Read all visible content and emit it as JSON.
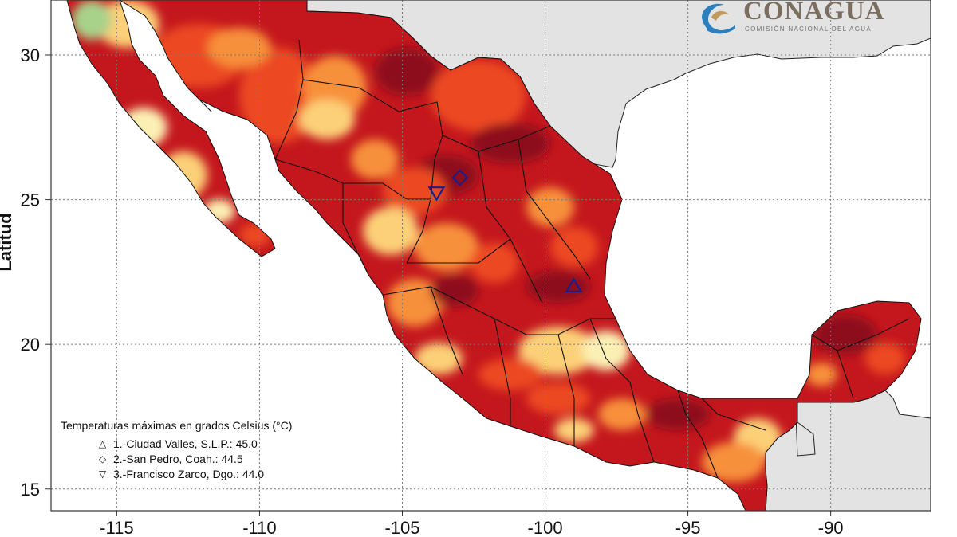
{
  "map": {
    "y_axis_label": "Latitud",
    "lon_ticks": [
      "-115",
      "-110",
      "-105",
      "-100",
      "-95",
      "-90"
    ],
    "lat_ticks": [
      "30",
      "25",
      "20",
      "15"
    ],
    "lon_range": [
      -117.3,
      -86.5
    ],
    "lat_range": [
      14.25,
      31.9
    ],
    "colors": {
      "sea": "#ffffff",
      "foreign_land": "#e3e3e3",
      "temp_dark": "#8e0e1f",
      "temp_high": "#c4171d",
      "temp_mid": "#ec4a22",
      "temp_low": "#f7903a",
      "temp_warm": "#fcd078",
      "temp_mild": "#fbf0b4",
      "temp_cool": "#a8d18a"
    }
  },
  "legend": {
    "title": "Temperaturas máximas en grados Celsius (°C)",
    "items": [
      {
        "symbol": "triangle-up",
        "glyph": "△",
        "label": "1.-Ciudad Valles, S.L.P.: 45.0",
        "lon": -99.0,
        "lat": 22.0
      },
      {
        "symbol": "diamond",
        "glyph": "◇",
        "label": "2.-San Pedro, Coah.: 44.5",
        "lon": -102.98,
        "lat": 25.76
      },
      {
        "symbol": "triangle-down",
        "glyph": "▽",
        "label": "3.-Francisco Zarco, Dgo.: 44.0",
        "lon": -103.8,
        "lat": 25.25
      }
    ]
  },
  "logo": {
    "name": "CONAGUA",
    "subtitle": "COMISIÓN NACIONAL DEL AGUA"
  }
}
